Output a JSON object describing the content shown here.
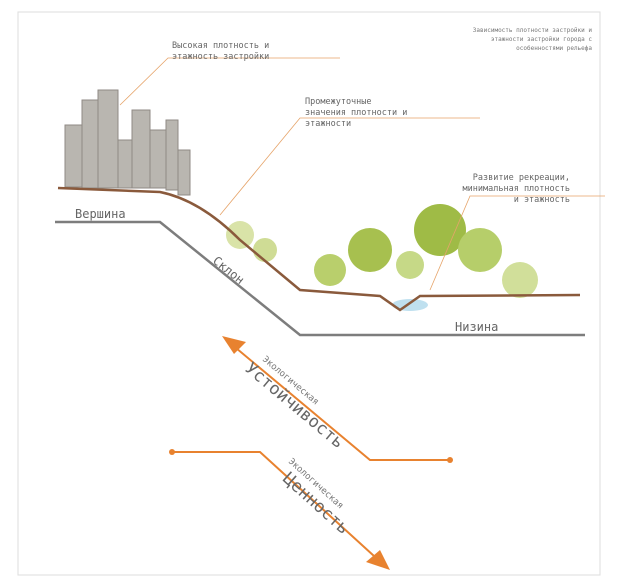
{
  "header": {
    "note": [
      "Зависимость плотности застройки и",
      "этажности застройки города с",
      "особенностями рельефа"
    ]
  },
  "annotations": [
    {
      "lines": [
        "Высокая плотность и",
        "этажность застройки"
      ]
    },
    {
      "lines": [
        "Промежуточные",
        "значения плотности и",
        "этажности"
      ]
    },
    {
      "lines": [
        "Развитие рекреации,",
        "минимальная плотность",
        "и этажность"
      ]
    }
  ],
  "terrain": {
    "labels": [
      "Вершина",
      "Склон",
      "Низина"
    ]
  },
  "axes": [
    {
      "top": "Экологическая",
      "main": "Устойчивость"
    },
    {
      "top": "Экологическая",
      "main": "Ценность"
    }
  ]
}
